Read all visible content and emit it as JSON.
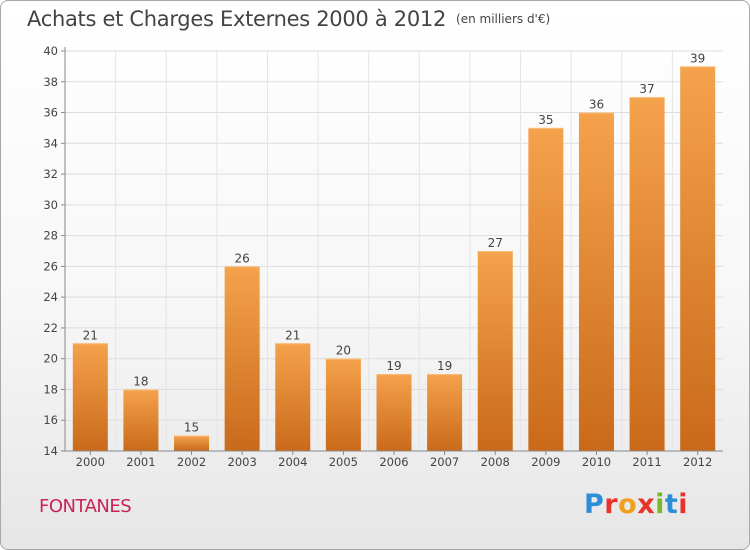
{
  "header": {
    "title": "Achats et Charges Externes 2000 à 2012",
    "unit": "(en milliers d'€)"
  },
  "footer": {
    "city": "FONTANES",
    "logo": "Proxiti",
    "logo_colors": [
      "#2a8fd6",
      "#e8332a",
      "#f0a020",
      "#e8332a",
      "#78b82a",
      "#2a8fd6",
      "#e8332a"
    ]
  },
  "colors": {
    "bar_light": "#f5a24c",
    "bar_dark": "#c96a1a",
    "city": "#cc2255",
    "text": "#444444"
  },
  "chart_data": {
    "type": "bar",
    "categories": [
      "2000",
      "2001",
      "2002",
      "2003",
      "2004",
      "2005",
      "2006",
      "2007",
      "2008",
      "2009",
      "2010",
      "2011",
      "2012"
    ],
    "values": [
      21,
      18,
      15,
      26,
      21,
      20,
      19,
      19,
      27,
      35,
      36,
      37,
      39
    ],
    "ylim": [
      14,
      40
    ],
    "yticks": [
      14,
      16,
      18,
      20,
      22,
      24,
      26,
      28,
      30,
      32,
      34,
      36,
      38,
      40
    ],
    "grid": true
  }
}
